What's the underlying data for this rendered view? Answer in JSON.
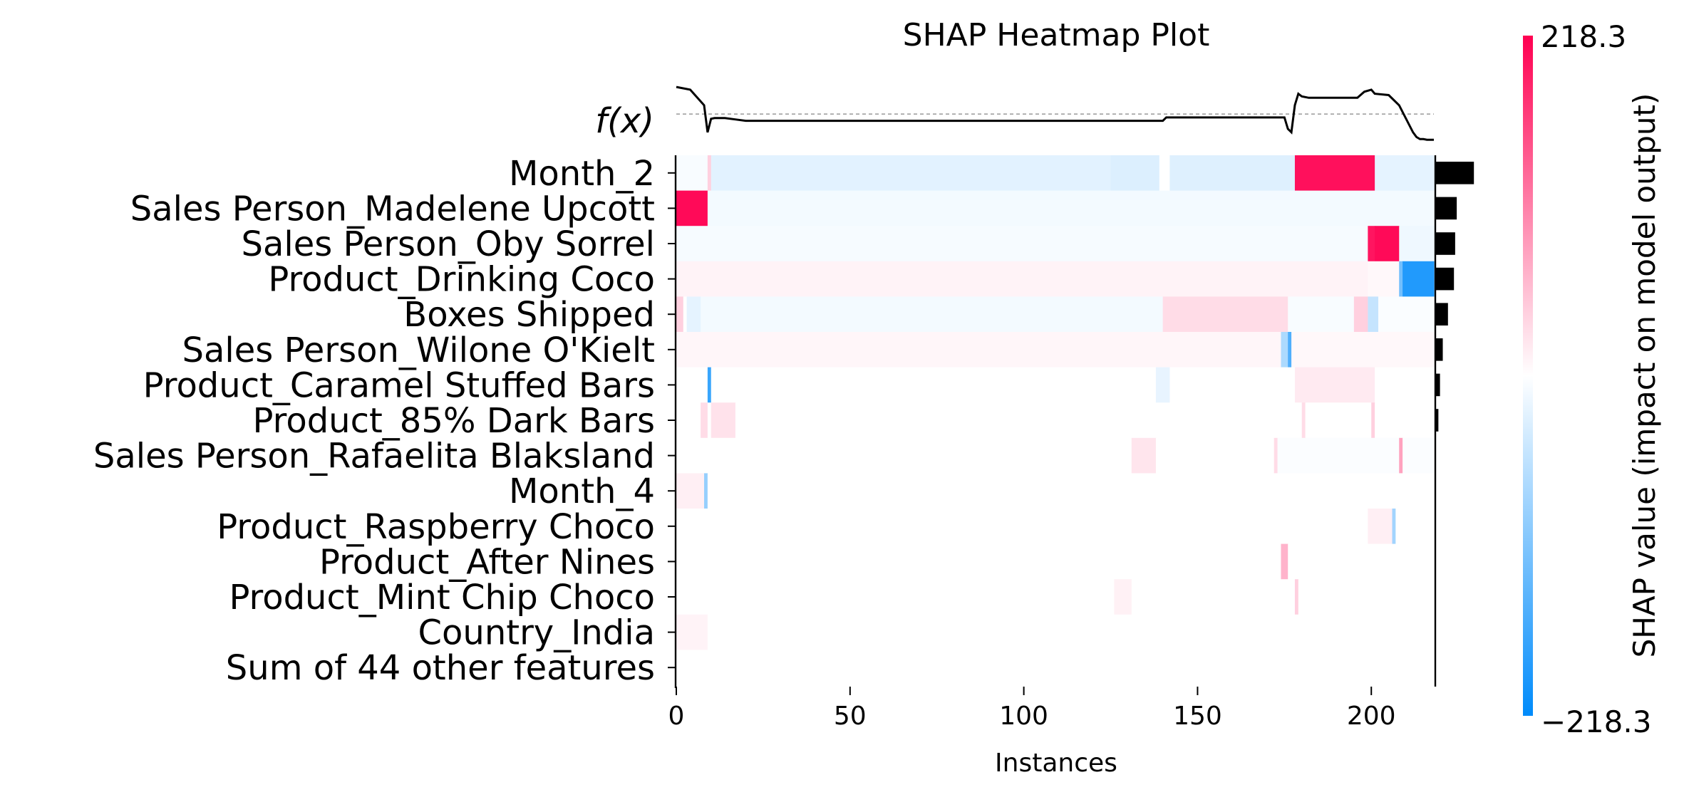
{
  "chart_data": {
    "type": "heatmap",
    "title": "SHAP Heatmap Plot",
    "xlabel": "Instances",
    "fx_label": "f(x)",
    "xlim": [
      0,
      218
    ],
    "xticks": [
      0,
      50,
      100,
      150,
      200
    ],
    "colorbar": {
      "label": "SHAP value (impact on model output)",
      "max_label": "218.3",
      "min_label": "−218.3",
      "vmin": -218.3,
      "vmax": 218.3,
      "neg_color": "#008bfb",
      "pos_color": "#ff0051"
    },
    "fx_curve": {
      "x": [
        0,
        4,
        8,
        9,
        10,
        11,
        14,
        17,
        20,
        30,
        60,
        100,
        140,
        141,
        150,
        175,
        176,
        177,
        178,
        179,
        180,
        182,
        190,
        196,
        198,
        200,
        201,
        205,
        206,
        208,
        210,
        212,
        213,
        214,
        215,
        216,
        218
      ],
      "y": [
        0.82,
        0.78,
        0.55,
        0.15,
        0.35,
        0.36,
        0.36,
        0.34,
        0.32,
        0.32,
        0.32,
        0.32,
        0.32,
        0.37,
        0.37,
        0.37,
        0.2,
        0.15,
        0.55,
        0.72,
        0.68,
        0.66,
        0.66,
        0.66,
        0.75,
        0.78,
        0.72,
        0.7,
        0.65,
        0.55,
        0.35,
        0.15,
        0.08,
        0.05,
        0.05,
        0.04,
        0.04
      ],
      "baseline": 0.42
    },
    "features": [
      {
        "name": "Month_2",
        "importance": 0.95,
        "segments": [
          [
            0,
            9,
            -6
          ],
          [
            9,
            10,
            40
          ],
          [
            10,
            125,
            -25
          ],
          [
            125,
            139,
            -30
          ],
          [
            139,
            142,
            0
          ],
          [
            142,
            178,
            -28
          ],
          [
            178,
            201,
            205
          ],
          [
            201,
            218,
            -22
          ]
        ]
      },
      {
        "name": "Sales Person_Madelene Upcott",
        "importance": 0.52,
        "segments": [
          [
            0,
            9,
            210
          ],
          [
            9,
            218,
            -10
          ]
        ]
      },
      {
        "name": "Sales Person_Oby Sorrel",
        "importance": 0.48,
        "segments": [
          [
            0,
            199,
            -8
          ],
          [
            199,
            201,
            200
          ],
          [
            201,
            208,
            210
          ],
          [
            208,
            218,
            -14
          ]
        ]
      },
      {
        "name": "Product_Drinking Coco",
        "importance": 0.45,
        "segments": [
          [
            0,
            199,
            10
          ],
          [
            199,
            208,
            6
          ],
          [
            208,
            209,
            -120
          ],
          [
            209,
            218,
            -190
          ]
        ]
      },
      {
        "name": "Boxes Shipped",
        "importance": 0.3,
        "segments": [
          [
            0,
            2,
            40
          ],
          [
            2,
            3,
            0
          ],
          [
            3,
            7,
            -22
          ],
          [
            7,
            140,
            -10
          ],
          [
            140,
            176,
            30
          ],
          [
            176,
            195,
            -6
          ],
          [
            195,
            199,
            40
          ],
          [
            199,
            202,
            -50
          ],
          [
            202,
            218,
            -4
          ]
        ]
      },
      {
        "name": "Sales Person_Wilone O'Kielt",
        "importance": 0.17,
        "segments": [
          [
            0,
            174,
            8
          ],
          [
            174,
            176,
            -70
          ],
          [
            176,
            177,
            -150
          ],
          [
            177,
            218,
            6
          ]
        ]
      },
      {
        "name": "Product_Caramel Stuffed Bars",
        "importance": 0.1,
        "segments": [
          [
            0,
            9,
            0
          ],
          [
            9,
            10,
            -170
          ],
          [
            10,
            138,
            0
          ],
          [
            138,
            142,
            -20
          ],
          [
            142,
            178,
            0
          ],
          [
            178,
            201,
            18
          ],
          [
            201,
            218,
            0
          ]
        ]
      },
      {
        "name": "Product_85% Dark Bars",
        "importance": 0.06,
        "segments": [
          [
            0,
            7,
            0
          ],
          [
            7,
            9,
            30
          ],
          [
            9,
            10,
            0
          ],
          [
            10,
            17,
            25
          ],
          [
            17,
            180,
            0
          ],
          [
            180,
            181,
            30
          ],
          [
            181,
            200,
            0
          ],
          [
            200,
            201,
            40
          ],
          [
            201,
            218,
            0
          ]
        ]
      },
      {
        "name": "Sales Person_Rafaelita Blaksland",
        "importance": 0.0,
        "segments": [
          [
            0,
            131,
            0
          ],
          [
            131,
            138,
            22
          ],
          [
            138,
            172,
            0
          ],
          [
            172,
            173,
            30
          ],
          [
            173,
            208,
            -3
          ],
          [
            208,
            209,
            80
          ],
          [
            209,
            218,
            -3
          ]
        ]
      },
      {
        "name": "Month_4",
        "importance": 0.0,
        "segments": [
          [
            0,
            8,
            14
          ],
          [
            8,
            9,
            -90
          ],
          [
            9,
            218,
            0
          ]
        ]
      },
      {
        "name": "Product_Raspberry Choco",
        "importance": 0.0,
        "segments": [
          [
            0,
            199,
            0
          ],
          [
            199,
            206,
            14
          ],
          [
            206,
            207,
            -80
          ],
          [
            207,
            218,
            0
          ]
        ]
      },
      {
        "name": "Product_After Nines",
        "importance": 0.0,
        "segments": [
          [
            0,
            174,
            0
          ],
          [
            174,
            176,
            65
          ],
          [
            176,
            218,
            0
          ]
        ]
      },
      {
        "name": "Product_Mint Chip Choco",
        "importance": 0.0,
        "segments": [
          [
            0,
            126,
            0
          ],
          [
            126,
            131,
            12
          ],
          [
            131,
            178,
            0
          ],
          [
            178,
            179,
            40
          ],
          [
            179,
            218,
            0
          ]
        ]
      },
      {
        "name": "Country_India",
        "importance": 0.0,
        "segments": [
          [
            0,
            9,
            10
          ],
          [
            9,
            218,
            0
          ]
        ]
      },
      {
        "name": "Sum of 44 other features",
        "importance": 0.0,
        "segments": [
          [
            0,
            218,
            0
          ]
        ]
      }
    ]
  }
}
